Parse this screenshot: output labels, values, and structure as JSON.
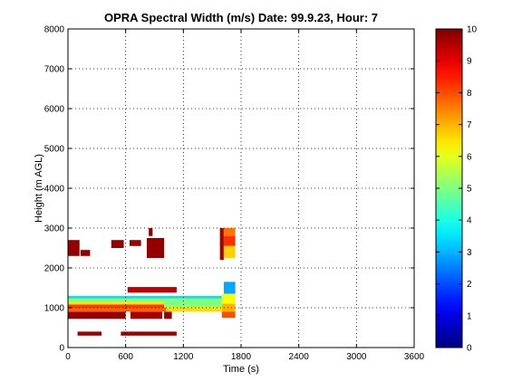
{
  "chart_data": {
    "type": "heatmap",
    "title": "OPRA Spectral Width (m/s)  Date: 99.9.23, Hour: 7",
    "xlabel": "Time (s)",
    "ylabel": "Height (m AGL)",
    "xlim": [
      0,
      3600
    ],
    "ylim": [
      0,
      8000
    ],
    "xticks": [
      0,
      600,
      1200,
      1800,
      2400,
      3000,
      3600
    ],
    "yticks": [
      0,
      1000,
      2000,
      3000,
      4000,
      5000,
      6000,
      7000,
      8000
    ],
    "grid": true,
    "colorbar": {
      "colormap": "jet",
      "range": [
        0,
        10
      ],
      "ticks": [
        0,
        1,
        2,
        3,
        4,
        5,
        6,
        7,
        8,
        9,
        10
      ]
    },
    "cells": [
      {
        "x": [
          100,
          350
        ],
        "y": [
          300,
          400
        ],
        "value": 9.7
      },
      {
        "x": [
          550,
          1130
        ],
        "y": [
          300,
          400
        ],
        "value": 9.7
      },
      {
        "x": [
          0,
          600
        ],
        "y": [
          720,
          900
        ],
        "value": 9.8
      },
      {
        "x": [
          650,
          980
        ],
        "y": [
          720,
          900
        ],
        "value": 9.6
      },
      {
        "x": [
          1000,
          1080
        ],
        "y": [
          720,
          900
        ],
        "value": 9.8
      },
      {
        "x": [
          0,
          1020
        ],
        "y": [
          900,
          1000
        ],
        "value": 7.8
      },
      {
        "x": [
          1020,
          1600
        ],
        "y": [
          900,
          1000
        ],
        "value": 6.6
      },
      {
        "x": [
          0,
          1000
        ],
        "y": [
          1000,
          1080
        ],
        "value": 8.2
      },
      {
        "x": [
          1000,
          1600
        ],
        "y": [
          1000,
          1080
        ],
        "value": 5.2
      },
      {
        "x": [
          0,
          1000
        ],
        "y": [
          1080,
          1150
        ],
        "value": 6.5
      },
      {
        "x": [
          1000,
          1600
        ],
        "y": [
          1080,
          1150
        ],
        "value": 4.9
      },
      {
        "x": [
          0,
          1600
        ],
        "y": [
          1150,
          1230
        ],
        "value": 5.0
      },
      {
        "x": [
          0,
          1600
        ],
        "y": [
          1230,
          1300
        ],
        "value": 3.5
      },
      {
        "x": [
          620,
          1130
        ],
        "y": [
          1380,
          1520
        ],
        "value": 9.4
      },
      {
        "x": [
          0,
          120
        ],
        "y": [
          2300,
          2700
        ],
        "value": 9.8
      },
      {
        "x": [
          130,
          230
        ],
        "y": [
          2300,
          2450
        ],
        "value": 9.8
      },
      {
        "x": [
          450,
          580
        ],
        "y": [
          2500,
          2700
        ],
        "value": 9.8
      },
      {
        "x": [
          640,
          760
        ],
        "y": [
          2550,
          2700
        ],
        "value": 9.7
      },
      {
        "x": [
          820,
          1000
        ],
        "y": [
          2250,
          2750
        ],
        "value": 9.8
      },
      {
        "x": [
          840,
          880
        ],
        "y": [
          2800,
          3000
        ],
        "value": 9.8
      },
      {
        "x": [
          1580,
          1620
        ],
        "y": [
          2200,
          3000
        ],
        "value": 9.6
      },
      {
        "x": [
          1620,
          1740
        ],
        "y": [
          2800,
          3000
        ],
        "value": 7.6
      },
      {
        "x": [
          1620,
          1740
        ],
        "y": [
          2550,
          2800
        ],
        "value": 8.3
      },
      {
        "x": [
          1620,
          1740
        ],
        "y": [
          2250,
          2550
        ],
        "value": 6.7
      },
      {
        "x": [
          1620,
          1740
        ],
        "y": [
          1350,
          1650
        ],
        "value": 2.9
      },
      {
        "x": [
          1600,
          1740
        ],
        "y": [
          1100,
          1350
        ],
        "value": 6.2
      },
      {
        "x": [
          1600,
          1740
        ],
        "y": [
          900,
          1100
        ],
        "value": 7.0
      },
      {
        "x": [
          1600,
          1740
        ],
        "y": [
          750,
          900
        ],
        "value": 8.0
      }
    ]
  }
}
